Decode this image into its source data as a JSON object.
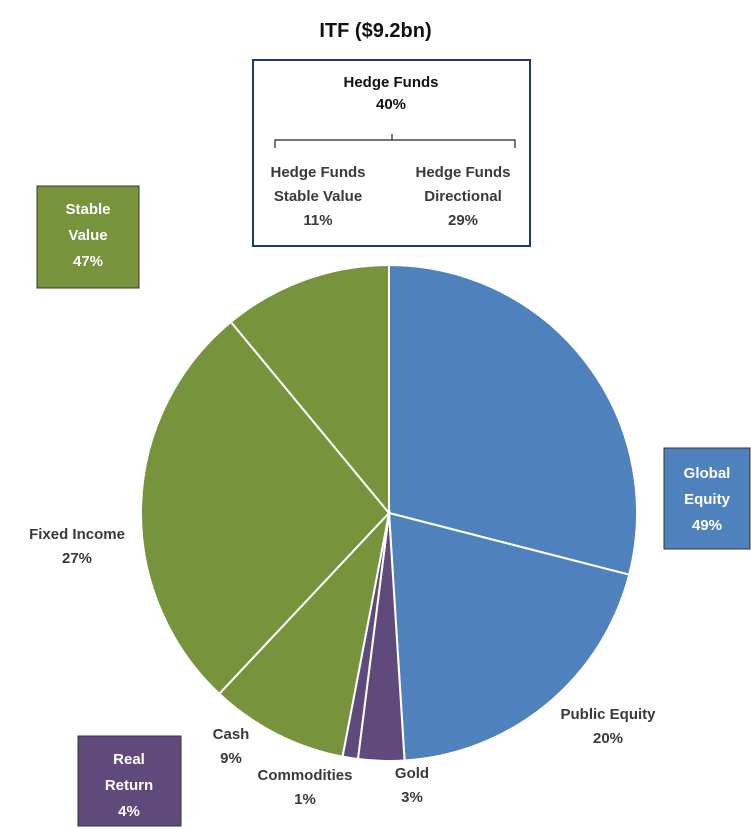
{
  "chart_data": {
    "type": "pie",
    "title": "ITF ($9.2bn)",
    "categories": [
      "Hedge Funds Directional",
      "Public Equity",
      "Gold",
      "Commodities",
      "Cash",
      "Fixed Income",
      "Hedge Funds Stable Value"
    ],
    "values": [
      29,
      20,
      3,
      1,
      9,
      27,
      11
    ],
    "value_labels": [
      "29%",
      "20%",
      "3%",
      "1%",
      "9%",
      "27%",
      "11%"
    ],
    "colors": [
      "#4f81bd",
      "#4f81bd",
      "#604a7b",
      "#604a7b",
      "#77933c",
      "#77933c",
      "#77933c"
    ],
    "groups": [
      {
        "name": "Hedge Funds",
        "value": 40,
        "value_label": "40%",
        "color": "#1f3864"
      },
      {
        "name": "Stable Value",
        "value": 47,
        "value_label": "47%",
        "color": "#77933c"
      },
      {
        "name": "Global Equity",
        "value": 49,
        "value_label": "49%",
        "color": "#4f81bd"
      },
      {
        "name": "Real Return",
        "value": 4,
        "value_label": "4%",
        "color": "#604a7b"
      }
    ]
  }
}
